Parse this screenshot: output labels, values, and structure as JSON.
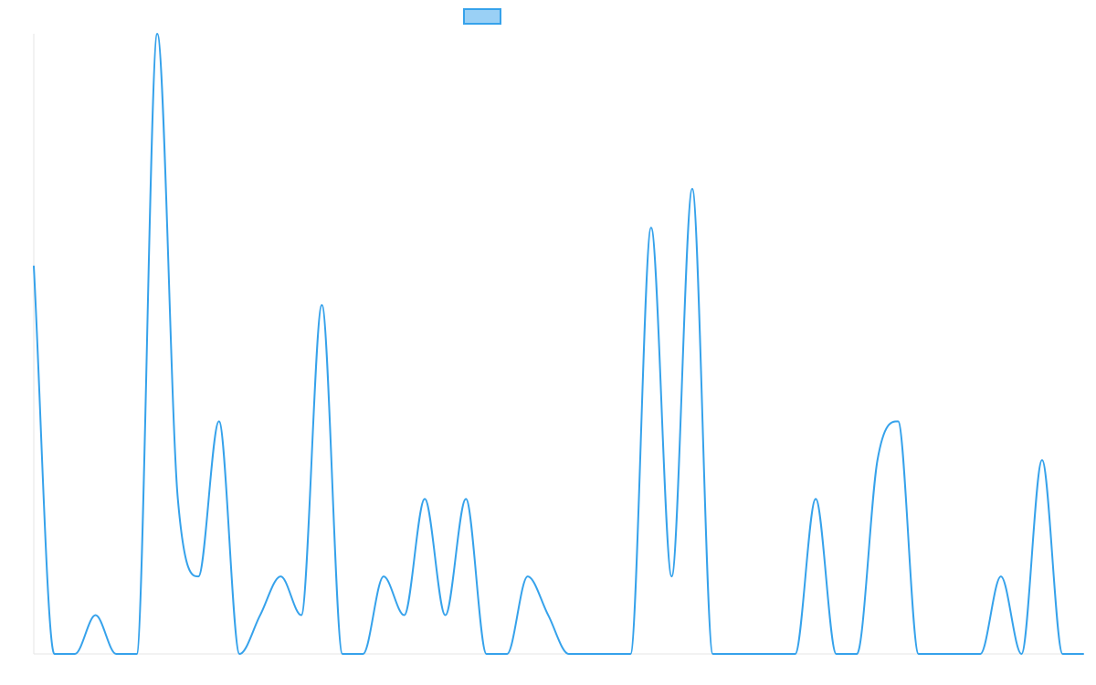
{
  "chart_data": {
    "type": "line",
    "title": "",
    "xlabel": "",
    "ylabel": "",
    "interpolation": "smooth",
    "grid": false,
    "legend": {
      "placement": "top-center",
      "entries": [
        ""
      ]
    },
    "ylim": [
      0,
      16
    ],
    "x": [
      0,
      1,
      2,
      3,
      4,
      5,
      6,
      7,
      8,
      9,
      10,
      11,
      12,
      13,
      14,
      15,
      16,
      17,
      18,
      19,
      20,
      21,
      22,
      23,
      24,
      25,
      26,
      27,
      28,
      29,
      30,
      31,
      32,
      33,
      34,
      35,
      36,
      37,
      38,
      39,
      40,
      41,
      42,
      43,
      44,
      45,
      46,
      47,
      48,
      49,
      50,
      51
    ],
    "series": [
      {
        "name": "",
        "color": "#36a2eb",
        "fill": "#9ad0f5",
        "values": [
          10,
          0,
          0,
          1,
          0,
          0,
          16,
          4,
          2,
          6,
          0,
          1,
          2,
          1,
          9,
          0,
          0,
          2,
          1,
          4,
          1,
          4,
          0,
          0,
          2,
          1,
          0,
          0,
          0,
          0,
          11,
          2,
          12,
          0,
          0,
          0,
          0,
          0,
          4,
          0,
          0,
          5,
          6,
          0,
          0,
          0,
          0,
          2,
          0,
          5,
          0,
          0
        ]
      }
    ]
  }
}
